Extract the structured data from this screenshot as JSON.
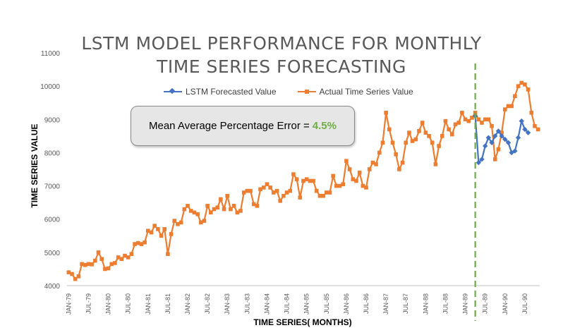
{
  "chart_data": {
    "type": "line",
    "title_lines": [
      "LSTM MODEL PERFORMANCE FOR MONTHLY",
      "TIME SERIES FORECASTING"
    ],
    "xlabel": "TIME SERIES( MONTHS)",
    "ylabel": "TIME SERIES VALUE",
    "ylim": [
      4000,
      11000
    ],
    "yticks": [
      4000,
      5000,
      6000,
      7000,
      8000,
      9000,
      10000,
      11000
    ],
    "x_tick_labels": [
      "JAN-79",
      "JUL-79",
      "JAN-80",
      "JUL-80",
      "JAN-81",
      "JUL-81",
      "JAN-82",
      "JUL-82",
      "JAN-83",
      "JUL-83",
      "JAN-84",
      "JUL-84",
      "JAN-85",
      "JUL-85",
      "JAN-86",
      "JUL-86",
      "JAN-87",
      "JUL-87",
      "JAN-88",
      "JUL-88",
      "JAN-89",
      "JUL-89",
      "JAN-90",
      "JUL-90"
    ],
    "legend_position": "top",
    "annotation": {
      "label": "Mean Average Percentage Error = ",
      "value": "4.5%"
    },
    "forecast_start_index": 123,
    "series": [
      {
        "name": "LSTM Forecasted Value",
        "color": "#4472c4",
        "marker": "diamond",
        "start_index": 123,
        "values": [
          9100,
          7700,
          7800,
          8200,
          8450,
          8300,
          8500,
          8650,
          8500,
          8400,
          8300,
          8000,
          8050,
          8450,
          8950,
          8700,
          8600
        ]
      },
      {
        "name": "Actual Time Series Value",
        "color": "#ed7d31",
        "marker": "square",
        "start_index": 0,
        "values": [
          4400,
          4350,
          4200,
          4280,
          4650,
          4620,
          4650,
          4640,
          4750,
          5000,
          4800,
          4500,
          4520,
          4650,
          4680,
          4850,
          4800,
          4900,
          4850,
          4950,
          5250,
          5280,
          5250,
          5300,
          5650,
          5600,
          5800,
          5700,
          5500,
          5700,
          4950,
          5550,
          5950,
          5850,
          5900,
          6300,
          6400,
          6250,
          6200,
          6150,
          5900,
          5950,
          6400,
          6200,
          6300,
          6350,
          6600,
          6300,
          6700,
          6300,
          6400,
          6200,
          6250,
          6800,
          6850,
          6850,
          6450,
          6400,
          6900,
          6950,
          7050,
          6950,
          6800,
          6850,
          6550,
          6700,
          6800,
          6850,
          7350,
          7200,
          6650,
          7150,
          7200,
          7150,
          7150,
          6850,
          6700,
          6700,
          6800,
          6800,
          7300,
          7000,
          7000,
          7050,
          7750,
          7500,
          7200,
          7150,
          7400,
          7000,
          6950,
          7500,
          7700,
          7650,
          8000,
          8300,
          9200,
          8700,
          8300,
          7950,
          7500,
          7700,
          8300,
          8600,
          8350,
          8400,
          8650,
          8900,
          8600,
          8500,
          8300,
          7650,
          8200,
          8500,
          8950,
          8700,
          8550,
          8850,
          8900,
          9200,
          9000,
          8950,
          9050,
          9200,
          9000,
          8900,
          9000,
          9000,
          8800,
          7800,
          8100,
          8600,
          9300,
          9400,
          9400,
          9700,
          10000,
          10100,
          10050,
          9900,
          9200,
          8800,
          8700
        ]
      }
    ]
  }
}
